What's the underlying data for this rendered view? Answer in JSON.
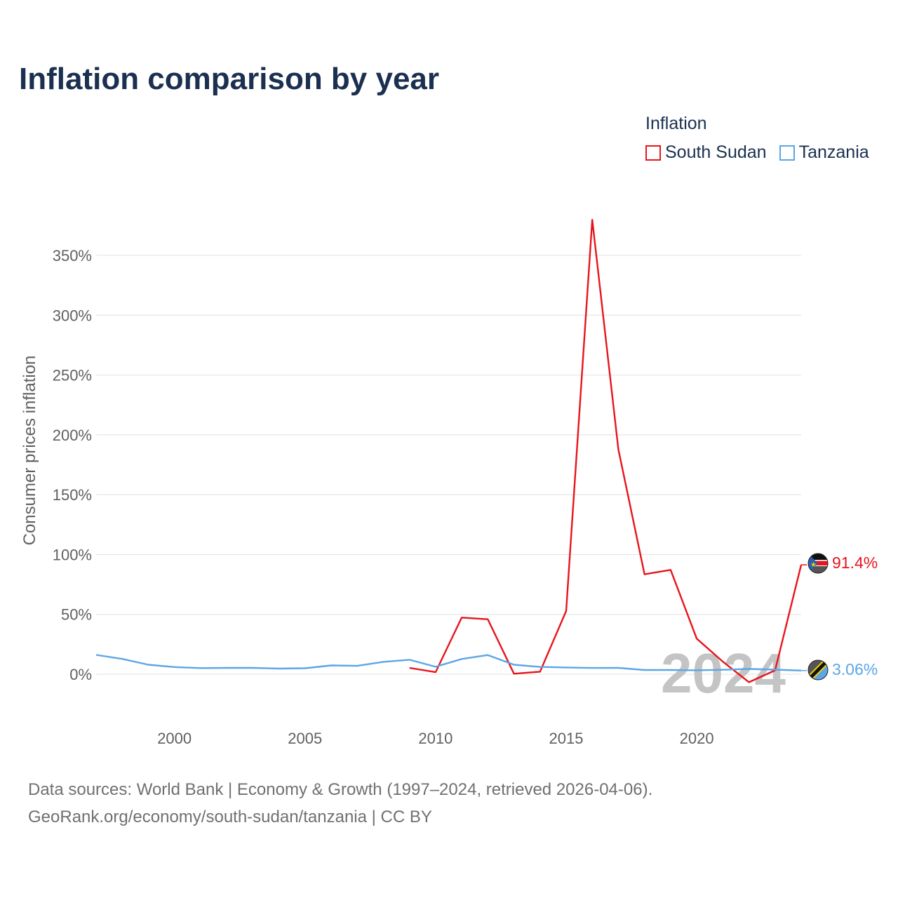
{
  "title": "Inflation comparison by year",
  "legend": {
    "title": "Inflation",
    "items": [
      {
        "name": "South Sudan",
        "color": "#e8141c"
      },
      {
        "name": "Tanzania",
        "color": "#5ba6e6"
      }
    ]
  },
  "source_lines": [
    "Data sources: World Bank | Economy & Growth (1997–2024, retrieved 2026-04-06).",
    "GeoRank.org/economy/south-sudan/tanzania | CC BY"
  ],
  "flags": [
    "south-sudan-flag-icon",
    "tanzania-flag-icon"
  ],
  "chart_data": {
    "type": "line",
    "title": "Inflation comparison by year",
    "xlabel": "",
    "ylabel": "Consumer prices inflation",
    "xlim": [
      1997,
      2024
    ],
    "ylim": [
      -30,
      390
    ],
    "yticks": [
      0,
      50,
      100,
      150,
      200,
      250,
      300,
      350
    ],
    "ytick_labels": [
      "0%",
      "50%",
      "100%",
      "150%",
      "200%",
      "250%",
      "300%",
      "350%"
    ],
    "xticks": [
      2000,
      2005,
      2010,
      2015,
      2020
    ],
    "xtick_labels": [
      "2000",
      "2005",
      "2010",
      "2015",
      "2020"
    ],
    "watermark_year": "2024",
    "grid": true,
    "series": [
      {
        "name": "South Sudan",
        "color": "#e8141c",
        "end_label": "91.4%",
        "x": [
          2009,
          2010,
          2011,
          2012,
          2013,
          2014,
          2015,
          2016,
          2017,
          2018,
          2019,
          2020,
          2021,
          2022,
          2023,
          2024
        ],
        "values": [
          5.3,
          1.7,
          47.3,
          45.9,
          0.4,
          2.1,
          52.8,
          379.8,
          187.9,
          83.5,
          87.2,
          29.7,
          10.5,
          -6.7,
          3.2,
          91.4
        ]
      },
      {
        "name": "Tanzania",
        "color": "#5ba6e6",
        "end_label": "3.06%",
        "x": [
          1997,
          1998,
          1999,
          2000,
          2001,
          2002,
          2003,
          2004,
          2005,
          2006,
          2007,
          2008,
          2009,
          2010,
          2011,
          2012,
          2013,
          2014,
          2015,
          2016,
          2017,
          2018,
          2019,
          2020,
          2021,
          2022,
          2023,
          2024
        ],
        "values": [
          16.1,
          12.8,
          7.9,
          6.0,
          5.1,
          5.3,
          5.3,
          4.7,
          5.0,
          7.3,
          7.0,
          10.3,
          12.1,
          6.2,
          12.7,
          16.0,
          7.9,
          6.1,
          5.6,
          5.2,
          5.3,
          3.5,
          3.5,
          3.3,
          3.7,
          4.4,
          3.8,
          3.06
        ]
      }
    ]
  }
}
